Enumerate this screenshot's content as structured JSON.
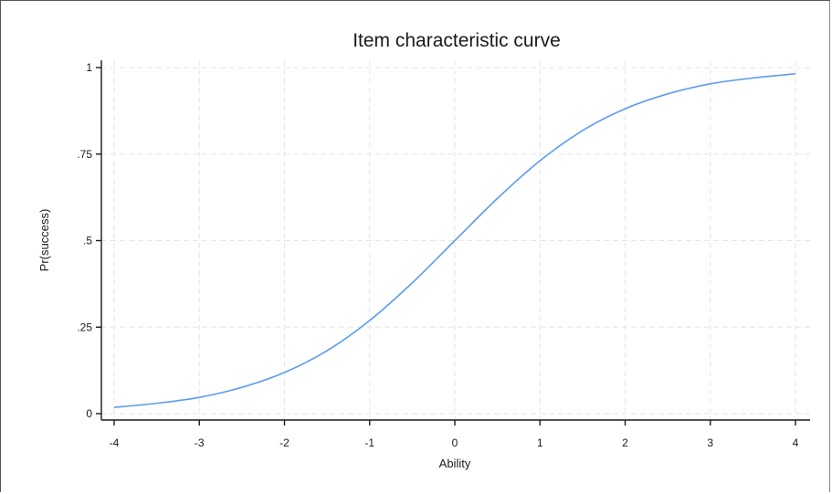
{
  "chart_data": {
    "type": "line",
    "title": "Item characteristic curve",
    "xlabel": "Ability",
    "ylabel": "Pr(success)",
    "xlim": [
      -4,
      4
    ],
    "ylim": [
      0,
      1
    ],
    "x_ticks": [
      -4,
      -3,
      -2,
      -1,
      0,
      1,
      2,
      3,
      4
    ],
    "x_tick_labels": [
      "-4",
      "-3",
      "-2",
      "-1",
      "0",
      "1",
      "2",
      "3",
      "4"
    ],
    "y_ticks": [
      0,
      0.25,
      0.5,
      0.75,
      1
    ],
    "y_tick_labels": [
      "0",
      ".25",
      ".5",
      ".75",
      "1"
    ],
    "grid": true,
    "series": [
      {
        "color": "#5b9bf0",
        "x": [
          -4,
          -3.5,
          -3,
          -2.5,
          -2,
          -1.5,
          -1,
          -0.5,
          0,
          0.5,
          1,
          1.5,
          2,
          2.5,
          3,
          3.5,
          4
        ],
        "values": [
          0.018,
          0.03,
          0.047,
          0.076,
          0.119,
          0.182,
          0.269,
          0.378,
          0.5,
          0.622,
          0.731,
          0.818,
          0.881,
          0.924,
          0.953,
          0.97,
          0.982
        ]
      }
    ]
  }
}
